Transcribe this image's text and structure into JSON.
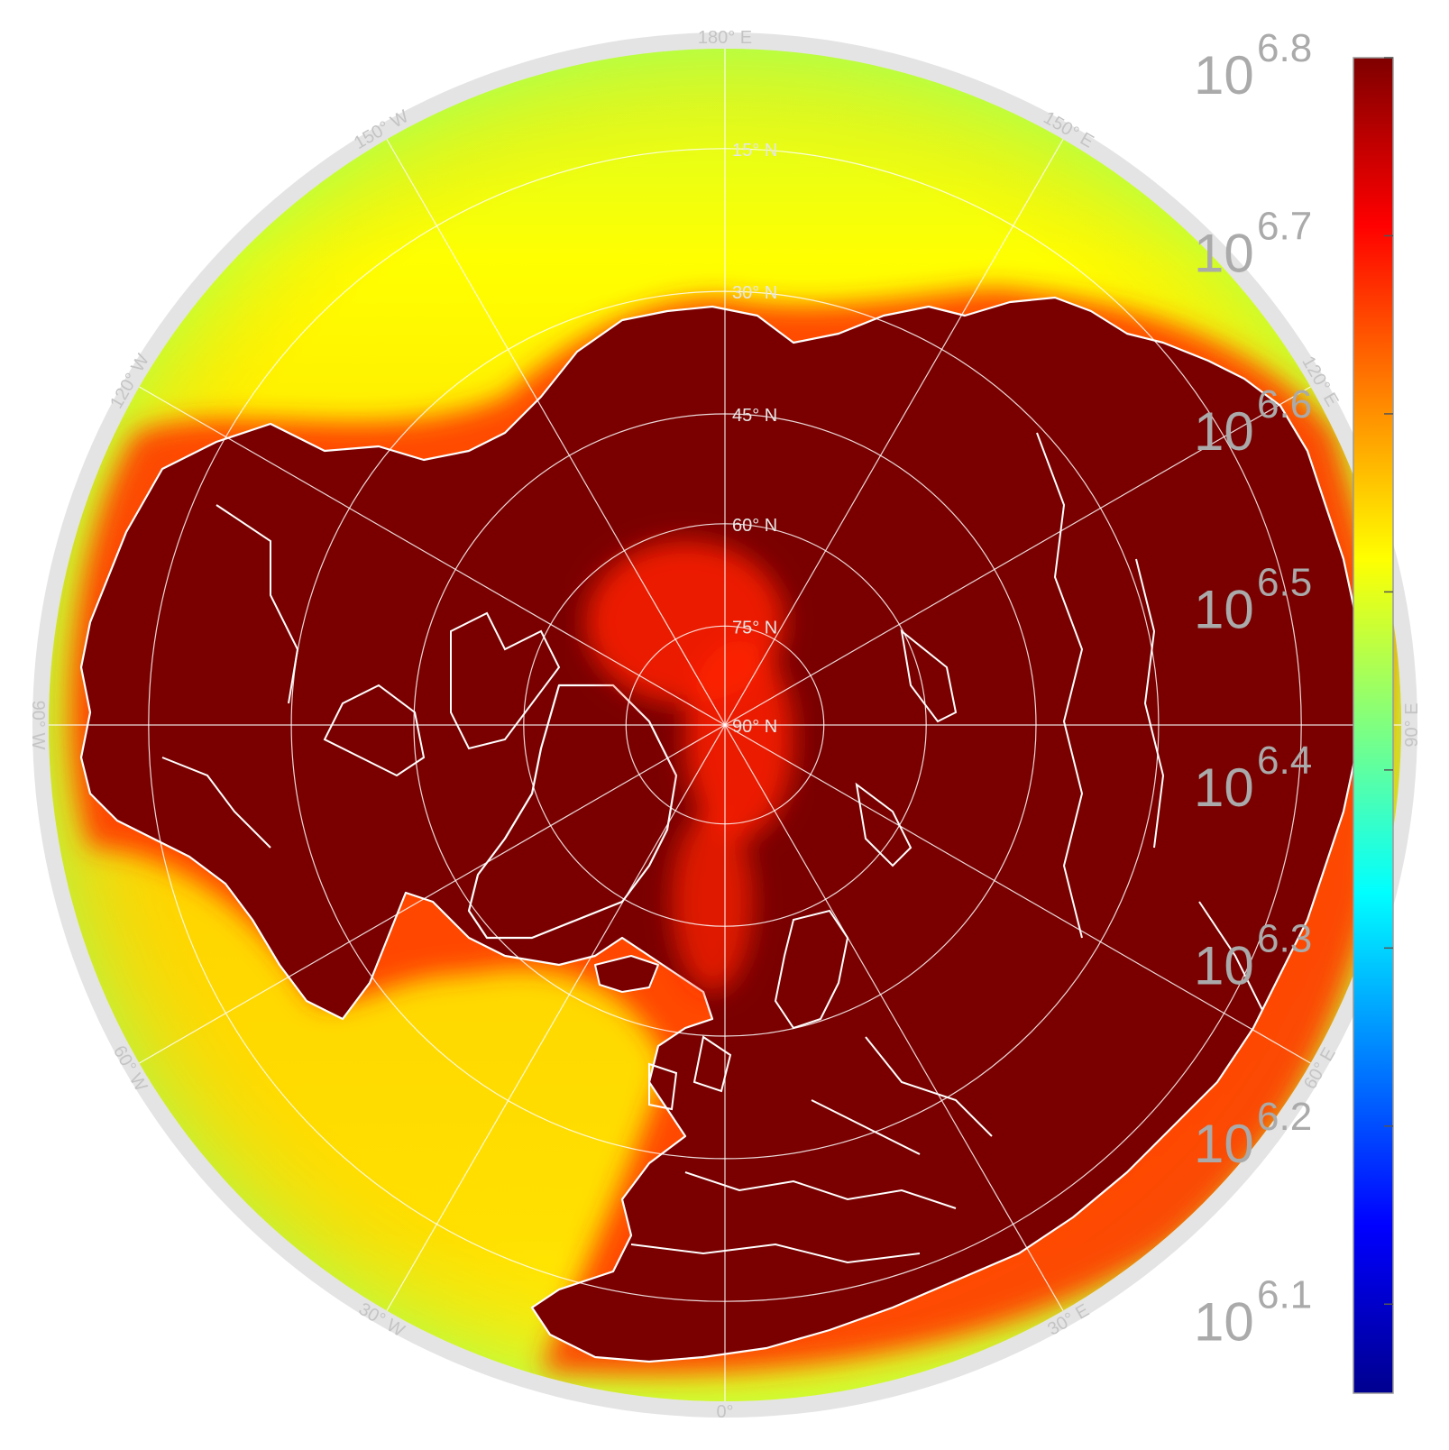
{
  "map": {
    "projection": "north-polar-stereographic",
    "center_label": "90° N",
    "boundary_latitude": 6,
    "parallels": [
      {
        "lat": 15,
        "label": "15° N"
      },
      {
        "lat": 30,
        "label": "30° N"
      },
      {
        "lat": 45,
        "label": "45° N"
      },
      {
        "lat": 60,
        "label": "60° N"
      },
      {
        "lat": 75,
        "label": "75° N"
      },
      {
        "lat": 90,
        "label": "90° N"
      }
    ],
    "meridians": [
      {
        "lon": 0,
        "label": "0°"
      },
      {
        "lon": 30,
        "label": "30° E"
      },
      {
        "lon": 60,
        "label": "60° E"
      },
      {
        "lon": 90,
        "label": "90° E"
      },
      {
        "lon": 120,
        "label": "120° E"
      },
      {
        "lon": 150,
        "label": "150° E"
      },
      {
        "lon": 180,
        "label": "180° E"
      },
      {
        "lon": -150,
        "label": "150° W"
      },
      {
        "lon": -120,
        "label": "120° W"
      },
      {
        "lon": -90,
        "label": "90° W"
      },
      {
        "lon": -60,
        "label": "60° W"
      },
      {
        "lon": -30,
        "label": "30° W"
      }
    ],
    "colors": {
      "land_fill": "#7a0000",
      "coastline": "#ffffff",
      "grid": "#ffffff",
      "frame": "#e4e4e4"
    }
  },
  "colorbar": {
    "scale": "log10",
    "range": [
      6.05,
      6.8
    ],
    "colormap": "jet",
    "ticks": [
      {
        "value": 6.8,
        "base": "10",
        "exp": "6.8"
      },
      {
        "value": 6.7,
        "base": "10",
        "exp": "6.7"
      },
      {
        "value": 6.6,
        "base": "10",
        "exp": "6.6"
      },
      {
        "value": 6.5,
        "base": "10",
        "exp": "6.5"
      },
      {
        "value": 6.4,
        "base": "10",
        "exp": "6.4"
      },
      {
        "value": 6.3,
        "base": "10",
        "exp": "6.3"
      },
      {
        "value": 6.2,
        "base": "10",
        "exp": "6.2"
      },
      {
        "value": 6.1,
        "base": "10",
        "exp": "6.1"
      }
    ]
  }
}
